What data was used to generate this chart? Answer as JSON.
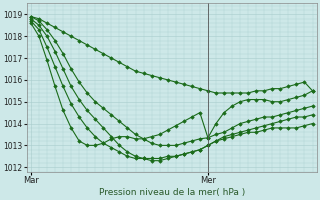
{
  "bg_color": "#cde8e8",
  "grid_color": "#a8cccc",
  "line_color": "#1a6b1a",
  "marker_color": "#1a6b1a",
  "title": "Pression niveau de la mer( hPa )",
  "ylim": [
    1011.8,
    1019.5
  ],
  "yticks": [
    1012,
    1013,
    1014,
    1015,
    1016,
    1017,
    1018,
    1019
  ],
  "xtick_labels": [
    "Mar",
    "Mer"
  ],
  "vline_x": 22,
  "series": [
    [
      1018.9,
      1018.8,
      1018.6,
      1018.4,
      1018.2,
      1018.0,
      1017.8,
      1017.6,
      1017.4,
      1017.2,
      1017.0,
      1016.8,
      1016.6,
      1016.4,
      1016.3,
      1016.2,
      1016.1,
      1016.0,
      1015.9,
      1015.8,
      1015.7,
      1015.6,
      1015.5,
      1015.4,
      1015.4,
      1015.4,
      1015.4,
      1015.4,
      1015.5,
      1015.5,
      1015.6,
      1015.6,
      1015.7,
      1015.8,
      1015.9,
      1015.5
    ],
    [
      1018.9,
      1018.7,
      1018.3,
      1017.8,
      1017.2,
      1016.5,
      1015.9,
      1015.4,
      1015.0,
      1014.7,
      1014.4,
      1014.1,
      1013.8,
      1013.5,
      1013.3,
      1013.1,
      1013.0,
      1013.0,
      1013.0,
      1013.1,
      1013.2,
      1013.3,
      1013.35,
      1013.5,
      1013.6,
      1013.8,
      1014.0,
      1014.1,
      1014.2,
      1014.3,
      1014.3,
      1014.4,
      1014.5,
      1014.6,
      1014.7,
      1014.8
    ],
    [
      1018.8,
      1018.5,
      1018.0,
      1017.3,
      1016.5,
      1015.7,
      1015.1,
      1014.6,
      1014.2,
      1013.8,
      1013.4,
      1013.0,
      1012.7,
      1012.5,
      1012.4,
      1012.3,
      1012.3,
      1012.4,
      1012.5,
      1012.6,
      1012.7,
      1012.8,
      1013.0,
      1013.2,
      1013.4,
      1013.5,
      1013.6,
      1013.7,
      1013.8,
      1013.9,
      1014.0,
      1014.1,
      1014.2,
      1014.3,
      1014.3,
      1014.4
    ],
    [
      1018.7,
      1018.3,
      1017.5,
      1016.6,
      1015.7,
      1014.9,
      1014.3,
      1013.8,
      1013.4,
      1013.1,
      1012.9,
      1012.7,
      1012.5,
      1012.4,
      1012.4,
      1012.4,
      1012.4,
      1012.5,
      1012.5,
      1012.6,
      1012.7,
      1012.8,
      1013.0,
      1013.2,
      1013.3,
      1013.4,
      1013.5,
      1013.6,
      1013.6,
      1013.7,
      1013.8,
      1013.8,
      1013.8,
      1013.8,
      1013.9,
      1014.0
    ],
    [
      1018.6,
      1018.0,
      1016.9,
      1015.7,
      1014.6,
      1013.8,
      1013.2,
      1013.0,
      1013.0,
      1013.1,
      1013.3,
      1013.4,
      1013.4,
      1013.3,
      1013.3,
      1013.4,
      1013.5,
      1013.7,
      1013.9,
      1014.1,
      1014.3,
      1014.5,
      1013.35,
      1014.0,
      1014.5,
      1014.8,
      1015.0,
      1015.1,
      1015.1,
      1015.1,
      1015.0,
      1015.0,
      1015.1,
      1015.2,
      1015.3,
      1015.5
    ]
  ]
}
